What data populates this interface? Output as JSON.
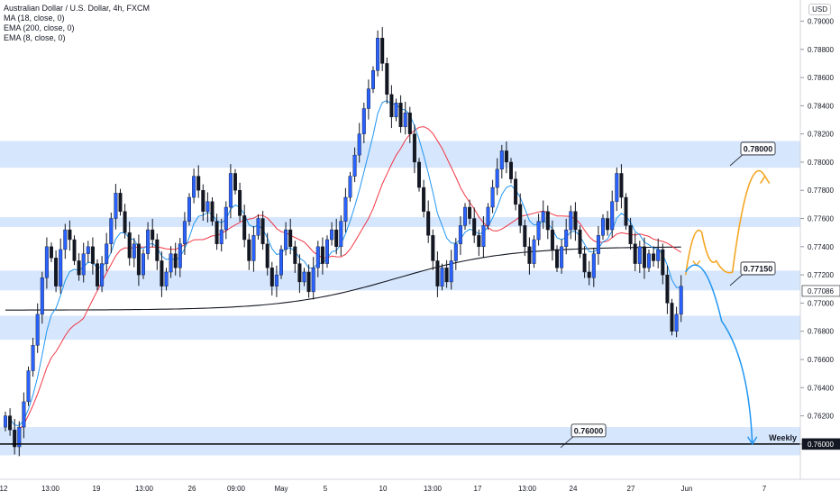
{
  "legend": {
    "title": "Australian Dollar / U.S. Dollar, 4h, FXCM",
    "ma": "MA (18, close, 0)",
    "ema200": "EMA (200, close, 0)",
    "ema8": "EMA (8, close, 0)"
  },
  "currency_button": "USD",
  "colors": {
    "up": "#2962ff",
    "down": "#131722",
    "ma": "#f23645",
    "ema200": "#131722",
    "ema8": "#2196f3",
    "zone": "#cfe2fb",
    "bullish_arrow": "#f5a623",
    "bearish_arrow": "#2196f3"
  },
  "chart_data": {
    "type": "candlestick",
    "title": "Australian Dollar / U.S. Dollar, 4h, FXCM",
    "y_axis": {
      "min": 0.7575,
      "max": 0.7915,
      "ticks": [
        "0.79000",
        "0.78800",
        "0.78600",
        "0.78400",
        "0.78200",
        "0.78000",
        "0.77800",
        "0.77600",
        "0.77400",
        "0.77200",
        "0.77000",
        "0.76800",
        "0.76600",
        "0.76400",
        "0.76200",
        "0.76000"
      ],
      "highlighted_ticks": [
        "0.77086",
        "0.76000"
      ]
    },
    "x_axis": {
      "ticks": [
        "12",
        "13:00",
        "19",
        "13:00",
        "26",
        "09:00",
        "May",
        "5",
        "10",
        "13:00",
        "17",
        "13:00",
        "24",
        "27",
        "Jun",
        "7"
      ]
    },
    "zones": [
      {
        "from": 0.7796,
        "to": 0.7815
      },
      {
        "from": 0.7754,
        "to": 0.7761
      },
      {
        "from": 0.7709,
        "to": 0.7723
      },
      {
        "from": 0.7674,
        "to": 0.7691
      },
      {
        "from": 0.7592,
        "to": 0.7612
      }
    ],
    "horizontal_lines": [
      {
        "value": 0.76,
        "label": "Weekly"
      }
    ],
    "callouts": [
      {
        "text": "0.78000",
        "value": 0.78
      },
      {
        "text": "0.77150",
        "value": 0.7715
      },
      {
        "text": "0.76000",
        "value": 0.76
      }
    ],
    "scenarios": [
      {
        "kind": "bullish",
        "path": [
          0.772,
          0.775,
          0.773,
          0.7722,
          0.779
        ]
      },
      {
        "kind": "bearish",
        "path": [
          0.7722,
          0.77,
          0.76
        ]
      }
    ],
    "indicators": [
      "MA (18, close, 0)",
      "EMA (200, close, 0)",
      "EMA (8, close, 0)"
    ],
    "closes": [
      0.762,
      0.761,
      0.7598,
      0.7612,
      0.763,
      0.7652,
      0.767,
      0.7692,
      0.7718,
      0.774,
      0.7732,
      0.7712,
      0.7738,
      0.7752,
      0.7745,
      0.773,
      0.772,
      0.7735,
      0.774,
      0.7728,
      0.7712,
      0.7728,
      0.7742,
      0.776,
      0.7778,
      0.7765,
      0.775,
      0.7732,
      0.7742,
      0.772,
      0.7735,
      0.7752,
      0.7745,
      0.773,
      0.7712,
      0.7722,
      0.7735,
      0.7725,
      0.7742,
      0.7758,
      0.7775,
      0.779,
      0.778,
      0.7765,
      0.7772,
      0.7758,
      0.7742,
      0.7752,
      0.7768,
      0.7792,
      0.778,
      0.7762,
      0.7745,
      0.773,
      0.7748,
      0.776,
      0.7742,
      0.7725,
      0.7712,
      0.772,
      0.7738,
      0.7752,
      0.774,
      0.7728,
      0.7715,
      0.7722,
      0.7708,
      0.7725,
      0.774,
      0.7728,
      0.7745,
      0.7752,
      0.774,
      0.7758,
      0.7775,
      0.779,
      0.7805,
      0.782,
      0.7838,
      0.7852,
      0.7865,
      0.7888,
      0.787,
      0.7848,
      0.7832,
      0.7842,
      0.7825,
      0.7835,
      0.782,
      0.78,
      0.7782,
      0.7765,
      0.7748,
      0.773,
      0.7712,
      0.7725,
      0.7715,
      0.773,
      0.7742,
      0.7755,
      0.7768,
      0.776,
      0.7748,
      0.774,
      0.7755,
      0.7768,
      0.7782,
      0.7795,
      0.7808,
      0.78,
      0.7788,
      0.777,
      0.7755,
      0.774,
      0.7728,
      0.7745,
      0.7758,
      0.7765,
      0.7752,
      0.7738,
      0.7725,
      0.774,
      0.7752,
      0.7765,
      0.7752,
      0.7735,
      0.7722,
      0.7718,
      0.7735,
      0.7748,
      0.776,
      0.7752,
      0.7772,
      0.7792,
      0.7775,
      0.7755,
      0.7742,
      0.7728,
      0.774,
      0.7725,
      0.7735,
      0.773,
      0.7738,
      0.772,
      0.77,
      0.768,
      0.7692,
      0.7712
    ]
  }
}
